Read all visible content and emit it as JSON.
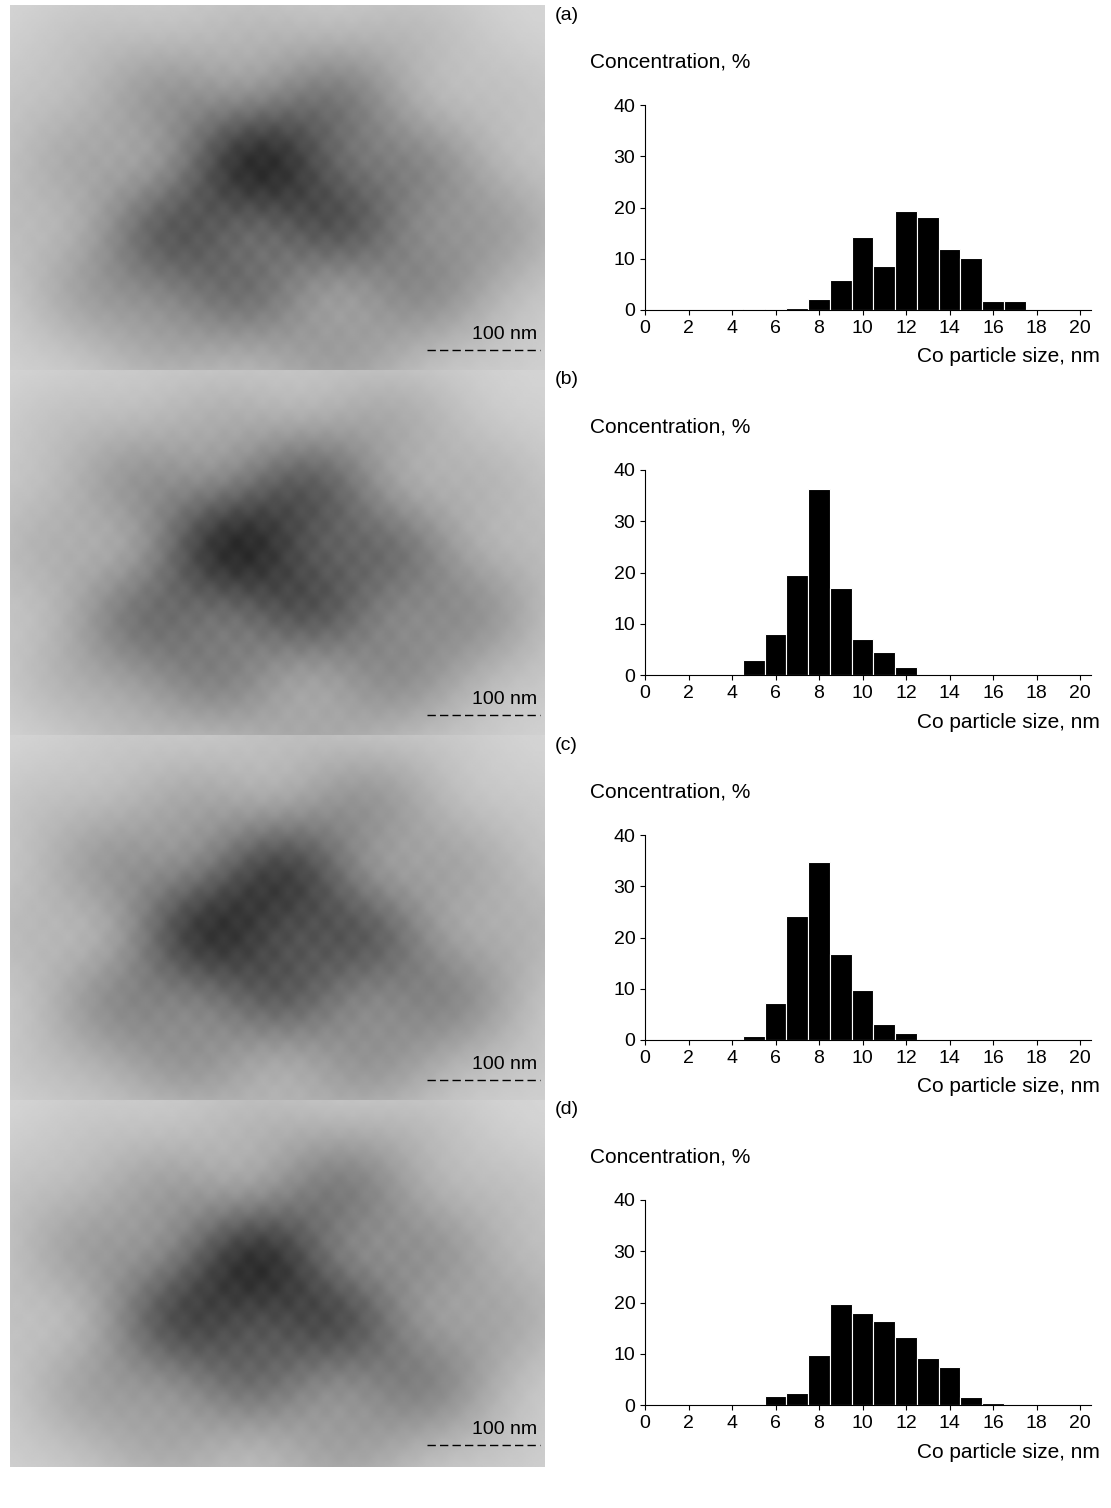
{
  "chart_data": [
    {
      "type": "histogram",
      "title": "(a)",
      "scale_bar": "100 nm",
      "x_label": "Co particle size, nm",
      "y_label": "Concentration, %",
      "bins": [
        4.5,
        5.5,
        6.5,
        7.5,
        8.5,
        9.5,
        10.5,
        11.5,
        12.5,
        13.5,
        14.5,
        15.5,
        16.5,
        17.5
      ],
      "counts": [
        0.2,
        0.2,
        0.3,
        2.2,
        5.8,
        14.2,
        8.6,
        19.4,
        18.1,
        12,
        10.2,
        1.8,
        1.8
      ],
      "color": "#000000",
      "xlim": [
        0,
        20.5
      ],
      "ylim": [
        0,
        40
      ],
      "xticks": [
        0,
        2,
        4,
        6,
        8,
        10,
        12,
        14,
        16,
        18,
        20
      ],
      "yticks": [
        0,
        10,
        20,
        30,
        40
      ],
      "grid": false
    },
    {
      "type": "histogram",
      "title": "(b)",
      "scale_bar": "100 nm",
      "x_label": "Co particle size, nm",
      "y_label": "Concentration, %",
      "bins": [
        4.5,
        5.5,
        6.5,
        7.5,
        8.5,
        9.5,
        10.5,
        11.5,
        12.5
      ],
      "counts": [
        3,
        8,
        19.5,
        36.2,
        17,
        7,
        4.5,
        1.5
      ],
      "color": "#000000",
      "xlim": [
        0,
        20.5
      ],
      "ylim": [
        0,
        40
      ],
      "xticks": [
        0,
        2,
        4,
        6,
        8,
        10,
        12,
        14,
        16,
        18,
        20
      ],
      "yticks": [
        0,
        10,
        20,
        30,
        40
      ],
      "grid": false
    },
    {
      "type": "histogram",
      "title": "(c)",
      "scale_bar": "100 nm",
      "x_label": "Co particle size, nm",
      "y_label": "Concentration, %",
      "bins": [
        4.5,
        5.5,
        6.5,
        7.5,
        8.5,
        9.5,
        10.5,
        11.5,
        12.5
      ],
      "counts": [
        0.8,
        7.2,
        24.2,
        34.8,
        16.8,
        9.7,
        3.2,
        1.4
      ],
      "color": "#000000",
      "xlim": [
        0,
        20.5
      ],
      "ylim": [
        0,
        40
      ],
      "xticks": [
        0,
        2,
        4,
        6,
        8,
        10,
        12,
        14,
        16,
        18,
        20
      ],
      "yticks": [
        0,
        10,
        20,
        30,
        40
      ],
      "grid": false
    },
    {
      "type": "histogram",
      "title": "(d)",
      "scale_bar": "100 nm",
      "x_label": "Co particle size, nm",
      "y_label": "Concentration, %",
      "bins": [
        5.5,
        6.5,
        7.5,
        8.5,
        9.5,
        10.5,
        11.5,
        12.5,
        13.5,
        14.5,
        15.5,
        16.5
      ],
      "counts": [
        1.8,
        2.4,
        9.7,
        19.8,
        17.9,
        16.3,
        13.2,
        9.2,
        7.5,
        1.5,
        0.4
      ],
      "color": "#000000",
      "xlim": [
        0,
        20.5
      ],
      "ylim": [
        0,
        40
      ],
      "xticks": [
        0,
        2,
        4,
        6,
        8,
        10,
        12,
        14,
        16,
        18,
        20
      ],
      "yticks": [
        0,
        10,
        20,
        30,
        40
      ],
      "grid": false
    }
  ]
}
